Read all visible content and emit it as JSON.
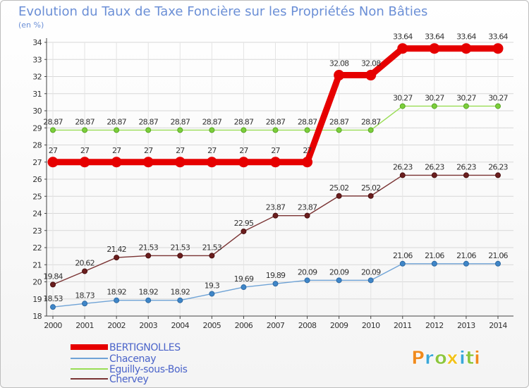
{
  "chart_data": {
    "type": "line",
    "title": "Evolution du Taux de Taxe Foncière sur les Propriétés Non Bâties",
    "subtitle": "(en %)",
    "x": [
      "2000",
      "2001",
      "2002",
      "2003",
      "2004",
      "2005",
      "2006",
      "2007",
      "2008",
      "2009",
      "2010",
      "2011",
      "2012",
      "2013",
      "2014"
    ],
    "ylim": [
      18,
      34
    ],
    "yticks": [
      "18",
      "19",
      "20",
      "21",
      "22",
      "23",
      "24",
      "25",
      "26",
      "27",
      "28",
      "29",
      "30",
      "31",
      "32",
      "33",
      "34"
    ],
    "grid": true,
    "legend_position": "bottom-left",
    "series": [
      {
        "name": "BERTIGNOLLES",
        "color": "#e60000",
        "values": [
          27,
          27,
          27,
          27,
          27,
          27,
          27,
          27,
          27,
          32.08,
          32.08,
          33.64,
          33.64,
          33.64,
          33.64
        ],
        "labels": [
          "27",
          "27",
          "27",
          "27",
          "27",
          "27",
          "27",
          "27",
          "27",
          "32.08",
          "32.08",
          "33.64",
          "33.64",
          "33.64",
          "33.64"
        ]
      },
      {
        "name": "Chacenay",
        "color": "#6fa3d6",
        "values": [
          18.53,
          18.73,
          18.92,
          18.92,
          18.92,
          19.3,
          19.69,
          19.89,
          20.09,
          20.09,
          20.09,
          21.06,
          21.06,
          21.06,
          21.06
        ],
        "labels": [
          "18.53",
          "18.73",
          "18.92",
          "18.92",
          "18.92",
          "19.3",
          "19.69",
          "19.89",
          "20.09",
          "20.09",
          "20.09",
          "21.06",
          "21.06",
          "21.06",
          "21.06"
        ]
      },
      {
        "name": "Eguilly-sous-Bois",
        "color": "#99dd55",
        "values": [
          28.87,
          28.87,
          28.87,
          28.87,
          28.87,
          28.87,
          28.87,
          28.87,
          28.87,
          28.87,
          28.87,
          30.27,
          30.27,
          30.27,
          30.27
        ],
        "labels": [
          "28.87",
          "28.87",
          "28.87",
          "28.87",
          "28.87",
          "28.87",
          "28.87",
          "28.87",
          "28.87",
          "28.87",
          "28.87",
          "30.27",
          "30.27",
          "30.27",
          "30.27"
        ]
      },
      {
        "name": "Chervey",
        "color": "#7a3333",
        "values": [
          19.84,
          20.62,
          21.42,
          21.53,
          21.53,
          21.53,
          22.95,
          23.87,
          23.87,
          25.02,
          25.02,
          26.23,
          26.23,
          26.23,
          26.23
        ],
        "labels": [
          "19.84",
          "20.62",
          "21.42",
          "21.53",
          "21.53",
          "21.53",
          "22.95",
          "23.87",
          "23.87",
          "25.02",
          "25.02",
          "26.23",
          "26.23",
          "26.23",
          "26.23"
        ]
      }
    ]
  },
  "logo": {
    "text": "Proxiti",
    "letters": [
      "P",
      "r",
      "o",
      "x",
      "i",
      "t",
      "i"
    ],
    "colors": [
      "#f08a1c",
      "#3aa7d8",
      "#8dc63f",
      "#f2c21a",
      "#3aa7d8",
      "#8dc63f",
      "#f08a1c"
    ]
  }
}
